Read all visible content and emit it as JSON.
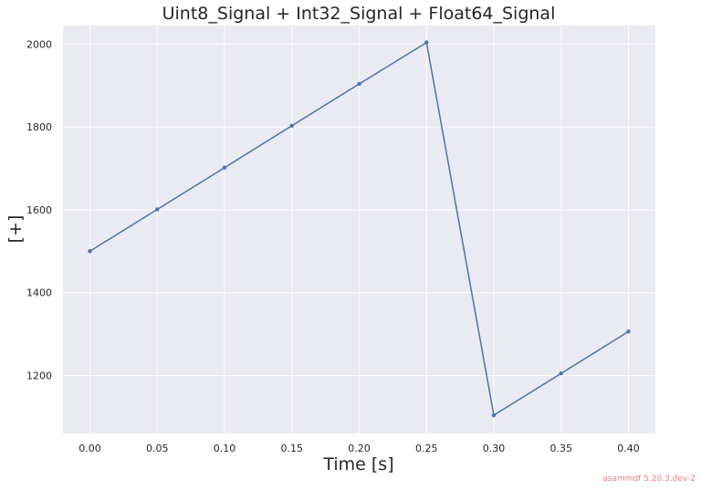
{
  "chart_data": {
    "type": "line",
    "title": "Uint8_Signal + Int32_Signal + Float64_Signal",
    "xlabel": "Time [s]",
    "ylabel": "[+]",
    "xlim": [
      -0.02,
      0.42
    ],
    "ylim": [
      1060,
      2045
    ],
    "x_ticks": [
      "0.00",
      "0.05",
      "0.10",
      "0.15",
      "0.20",
      "0.25",
      "0.30",
      "0.35",
      "0.40"
    ],
    "y_ticks": [
      "1200",
      "1400",
      "1600",
      "1800",
      "2000"
    ],
    "grid": true,
    "series": [
      {
        "color": "#4c72b0",
        "x": [
          0.0,
          0.05,
          0.1,
          0.15,
          0.2,
          0.25,
          0.3,
          0.35,
          0.4
        ],
        "y": [
          1500,
          1601,
          1702,
          1803,
          1904,
          2004,
          1104,
          1205,
          1306
        ]
      }
    ]
  },
  "footer": {
    "watermark": "asammdf 5.20.3.dev-2",
    "watermark_color": "#f08080"
  },
  "colors": {
    "plot_background": "#eaeaf2",
    "grid": "#ffffff"
  }
}
